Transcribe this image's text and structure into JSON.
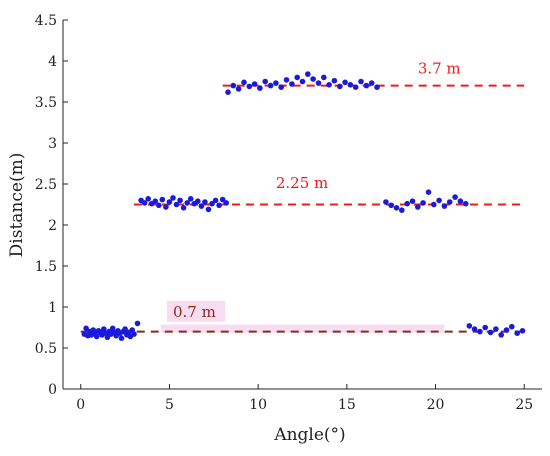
{
  "chart_data": {
    "type": "scatter",
    "xlabel": "Angle(°)",
    "ylabel": "Distance(m)",
    "xlim": [
      -1,
      26
    ],
    "ylim": [
      0,
      4.5
    ],
    "xticks": [
      0,
      5,
      10,
      15,
      20,
      25
    ],
    "yticks": [
      0,
      0.5,
      1,
      1.5,
      2,
      2.5,
      3,
      3.5,
      4,
      4.5
    ],
    "xtick_labels": [
      "0",
      "5",
      "10",
      "15",
      "20",
      "25"
    ],
    "ytick_labels": [
      "0",
      "0.5",
      "1",
      "1.5",
      "2",
      "2.5",
      "3",
      "3.5",
      "4",
      "4.5"
    ],
    "grid": false,
    "point_color": "#1a1adc",
    "reference_lines": [
      {
        "label": "3.7 m",
        "y": 3.7,
        "x_range": [
          8,
          25
        ],
        "color": "#ee1c1c",
        "label_color": "#ee1c1c",
        "label_x": 19.0,
        "label_y": 3.85
      },
      {
        "label": "2.25 m",
        "y": 2.25,
        "x_range": [
          3,
          25
        ],
        "color": "#ee1c1c",
        "label_color": "#ee1c1c",
        "label_x": 11.0,
        "label_y": 2.45
      },
      {
        "label": "0.7 m",
        "y": 0.7,
        "x_range": [
          0,
          25
        ],
        "color": "#8b2a14",
        "label_color": "#8b2a14",
        "label_x": 5.2,
        "label_y": 0.88,
        "label_bg": "#f8dcf2"
      }
    ],
    "points": [
      [
        0.2,
        0.67
      ],
      [
        0.3,
        0.74
      ],
      [
        0.4,
        0.65
      ],
      [
        0.5,
        0.7
      ],
      [
        0.6,
        0.66
      ],
      [
        0.7,
        0.72
      ],
      [
        0.8,
        0.68
      ],
      [
        0.9,
        0.64
      ],
      [
        1.0,
        0.71
      ],
      [
        1.1,
        0.69
      ],
      [
        1.2,
        0.66
      ],
      [
        1.3,
        0.73
      ],
      [
        1.4,
        0.68
      ],
      [
        1.5,
        0.63
      ],
      [
        1.6,
        0.7
      ],
      [
        1.7,
        0.67
      ],
      [
        1.8,
        0.74
      ],
      [
        1.9,
        0.69
      ],
      [
        2.0,
        0.65
      ],
      [
        2.1,
        0.71
      ],
      [
        2.2,
        0.68
      ],
      [
        2.3,
        0.62
      ],
      [
        2.4,
        0.7
      ],
      [
        2.5,
        0.73
      ],
      [
        2.6,
        0.66
      ],
      [
        2.7,
        0.69
      ],
      [
        2.8,
        0.64
      ],
      [
        2.9,
        0.72
      ],
      [
        3.0,
        0.67
      ],
      [
        3.2,
        0.8
      ],
      [
        3.4,
        2.3
      ],
      [
        3.6,
        2.27
      ],
      [
        3.8,
        2.32
      ],
      [
        4.0,
        2.26
      ],
      [
        4.2,
        2.29
      ],
      [
        4.4,
        2.24
      ],
      [
        4.6,
        2.31
      ],
      [
        4.8,
        2.22
      ],
      [
        5.0,
        2.28
      ],
      [
        5.2,
        2.33
      ],
      [
        5.4,
        2.25
      ],
      [
        5.6,
        2.3
      ],
      [
        5.8,
        2.21
      ],
      [
        6.0,
        2.27
      ],
      [
        6.2,
        2.32
      ],
      [
        6.4,
        2.26
      ],
      [
        6.6,
        2.29
      ],
      [
        6.8,
        2.23
      ],
      [
        7.0,
        2.28
      ],
      [
        7.2,
        2.19
      ],
      [
        7.4,
        2.26
      ],
      [
        7.6,
        2.3
      ],
      [
        7.8,
        2.24
      ],
      [
        8.0,
        2.31
      ],
      [
        8.2,
        2.27
      ],
      [
        8.3,
        3.62
      ],
      [
        8.6,
        3.7
      ],
      [
        8.9,
        3.66
      ],
      [
        9.2,
        3.74
      ],
      [
        9.5,
        3.69
      ],
      [
        9.8,
        3.72
      ],
      [
        10.1,
        3.67
      ],
      [
        10.4,
        3.75
      ],
      [
        10.7,
        3.7
      ],
      [
        11.0,
        3.73
      ],
      [
        11.3,
        3.68
      ],
      [
        11.6,
        3.77
      ],
      [
        11.9,
        3.72
      ],
      [
        12.2,
        3.8
      ],
      [
        12.5,
        3.75
      ],
      [
        12.8,
        3.84
      ],
      [
        13.1,
        3.78
      ],
      [
        13.4,
        3.73
      ],
      [
        13.7,
        3.8
      ],
      [
        14.0,
        3.71
      ],
      [
        14.3,
        3.76
      ],
      [
        14.6,
        3.69
      ],
      [
        14.9,
        3.74
      ],
      [
        15.2,
        3.71
      ],
      [
        15.5,
        3.68
      ],
      [
        15.8,
        3.75
      ],
      [
        16.1,
        3.7
      ],
      [
        16.4,
        3.73
      ],
      [
        16.7,
        3.68
      ],
      [
        17.2,
        2.28
      ],
      [
        17.5,
        2.24
      ],
      [
        17.8,
        2.21
      ],
      [
        18.1,
        2.18
      ],
      [
        18.4,
        2.26
      ],
      [
        18.7,
        2.29
      ],
      [
        19.0,
        2.22
      ],
      [
        19.3,
        2.27
      ],
      [
        19.6,
        2.4
      ],
      [
        19.9,
        2.25
      ],
      [
        20.2,
        2.3
      ],
      [
        20.5,
        2.23
      ],
      [
        20.8,
        2.28
      ],
      [
        21.1,
        2.34
      ],
      [
        21.4,
        2.29
      ],
      [
        21.7,
        2.26
      ],
      [
        21.9,
        0.77
      ],
      [
        22.2,
        0.73
      ],
      [
        22.5,
        0.7
      ],
      [
        22.8,
        0.75
      ],
      [
        23.1,
        0.69
      ],
      [
        23.4,
        0.73
      ],
      [
        23.7,
        0.66
      ],
      [
        24.0,
        0.72
      ],
      [
        24.3,
        0.76
      ],
      [
        24.6,
        0.68
      ],
      [
        24.9,
        0.71
      ]
    ]
  }
}
